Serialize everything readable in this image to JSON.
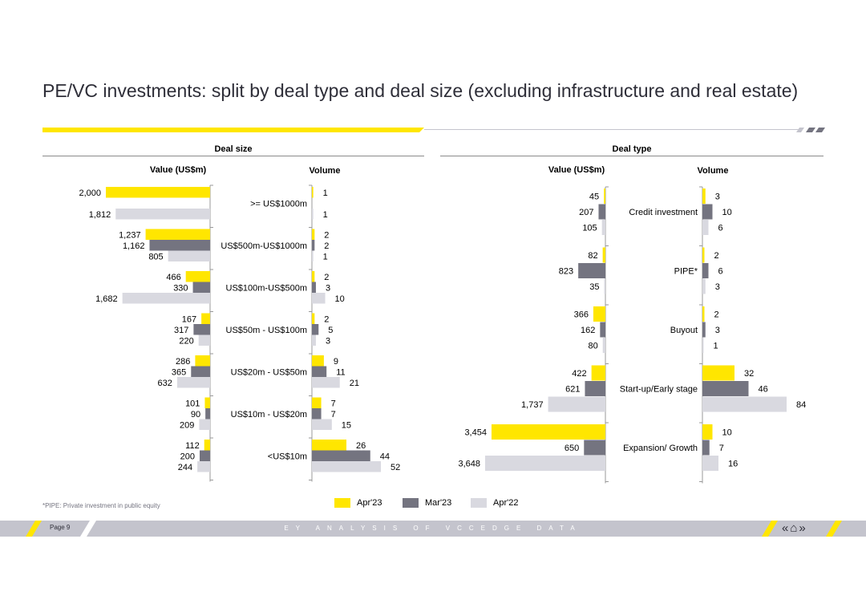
{
  "title": "PE/VC investments: split by deal type and deal size (excluding infrastructure and real estate)",
  "colors": {
    "apr23": "#ffe600",
    "mar23": "#747480",
    "apr22": "#d9d9e0",
    "axis": "#999999"
  },
  "left_panel": {
    "heading": "Deal size",
    "value_label": "Value (US$m)",
    "volume_label": "Volume"
  },
  "right_panel": {
    "heading": "Deal type",
    "value_label": "Value (US$m)",
    "volume_label": "Volume"
  },
  "chart_data": [
    {
      "type": "bar",
      "title": "Deal size",
      "subchart": "Value (US$m)",
      "categories": [
        ">= US$1000m",
        "US$500m-US$1000m",
        "US$100m-US$500m",
        "US$50m - US$100m",
        "US$20m - US$50m",
        "US$10m - US$20m",
        "<US$10m"
      ],
      "series": [
        {
          "name": "Apr'23",
          "values": [
            2000,
            1237,
            466,
            167,
            286,
            101,
            112
          ],
          "labels": [
            "2,000",
            "1,237",
            "466",
            "167",
            "286",
            "101",
            "112"
          ]
        },
        {
          "name": "Mar'23",
          "values": [
            null,
            1162,
            330,
            317,
            365,
            90,
            200
          ],
          "labels": [
            "",
            "1,162",
            "330",
            "317",
            "365",
            "90",
            "200"
          ]
        },
        {
          "name": "Apr'22",
          "values": [
            1812,
            805,
            1682,
            220,
            632,
            209,
            244
          ],
          "labels": [
            "1,812",
            "805",
            "1,682",
            "220",
            "632",
            "209",
            "244"
          ]
        }
      ],
      "orientation": "horizontal",
      "direction": "right-to-left",
      "xlim": [
        0,
        2000
      ]
    },
    {
      "type": "bar",
      "title": "Deal size",
      "subchart": "Volume",
      "categories": [
        ">= US$1000m",
        "US$500m-US$1000m",
        "US$100m-US$500m",
        "US$50m - US$100m",
        "US$20m - US$50m",
        "US$10m - US$20m",
        "<US$10m"
      ],
      "series": [
        {
          "name": "Apr'23",
          "values": [
            1,
            2,
            2,
            2,
            9,
            7,
            26
          ],
          "labels": [
            "1",
            "2",
            "2",
            "2",
            "9",
            "7",
            "26"
          ]
        },
        {
          "name": "Mar'23",
          "values": [
            null,
            2,
            3,
            5,
            11,
            7,
            44
          ],
          "labels": [
            "",
            "2",
            "3",
            "5",
            "11",
            "7",
            "44"
          ]
        },
        {
          "name": "Apr'22",
          "values": [
            1,
            1,
            10,
            3,
            21,
            15,
            52
          ],
          "labels": [
            "1",
            "1",
            "10",
            "3",
            "21",
            "15",
            "52"
          ]
        }
      ],
      "orientation": "horizontal",
      "xlim": [
        0,
        52
      ]
    },
    {
      "type": "bar",
      "title": "Deal type",
      "subchart": "Value (US$m)",
      "categories": [
        "Credit investment",
        "PIPE*",
        "Buyout",
        "Start-up/Early stage",
        "Expansion/ Growth"
      ],
      "series": [
        {
          "name": "Apr'23",
          "values": [
            45,
            82,
            366,
            422,
            3454
          ],
          "labels": [
            "45",
            "82",
            "366",
            "422",
            "3,454"
          ]
        },
        {
          "name": "Mar'23",
          "values": [
            207,
            823,
            162,
            621,
            650
          ],
          "labels": [
            "207",
            "823",
            "162",
            "621",
            "650"
          ]
        },
        {
          "name": "Apr'22",
          "values": [
            105,
            35,
            80,
            1737,
            3648
          ],
          "labels": [
            "105",
            "35",
            "80",
            "1,737",
            "3,648"
          ]
        }
      ],
      "orientation": "horizontal",
      "direction": "right-to-left",
      "xlim": [
        0,
        3648
      ]
    },
    {
      "type": "bar",
      "title": "Deal type",
      "subchart": "Volume",
      "categories": [
        "Credit investment",
        "PIPE*",
        "Buyout",
        "Start-up/Early stage",
        "Expansion/ Growth"
      ],
      "series": [
        {
          "name": "Apr'23",
          "values": [
            3,
            2,
            2,
            32,
            10
          ],
          "labels": [
            "3",
            "2",
            "2",
            "32",
            "10"
          ]
        },
        {
          "name": "Mar'23",
          "values": [
            10,
            6,
            3,
            46,
            7
          ],
          "labels": [
            "10",
            "6",
            "3",
            "46",
            "7"
          ]
        },
        {
          "name": "Apr'22",
          "values": [
            6,
            3,
            1,
            84,
            16
          ],
          "labels": [
            "6",
            "3",
            "1",
            "84",
            "16"
          ]
        }
      ],
      "orientation": "horizontal",
      "xlim": [
        0,
        84
      ]
    }
  ],
  "legend": [
    {
      "label": "Apr'23",
      "color": "#ffe600"
    },
    {
      "label": "Mar'23",
      "color": "#747480"
    },
    {
      "label": "Apr'22",
      "color": "#d9d9e0"
    }
  ],
  "footnote": "*PIPE: Private investment in public equity",
  "footer": {
    "page": "Page 9",
    "text": "EY ANALYSIS OF VCCEDGE DATA",
    "nav_prev": "«",
    "nav_home": "⌂",
    "nav_next": "»"
  }
}
